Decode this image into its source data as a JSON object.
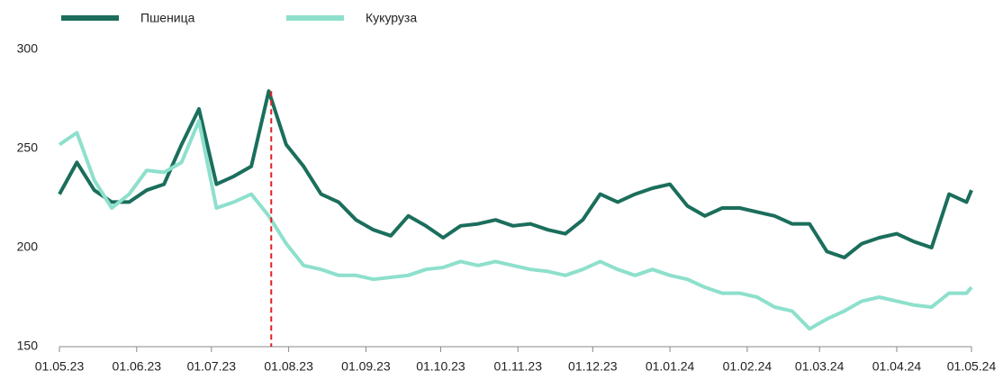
{
  "chart_data": {
    "type": "line",
    "x": [
      "01.05.23",
      "08.05.23",
      "15.05.23",
      "22.05.23",
      "29.05.23",
      "05.06.23",
      "12.06.23",
      "19.06.23",
      "26.06.23",
      "03.07.23",
      "10.07.23",
      "17.07.23",
      "24.07.23",
      "31.07.23",
      "07.08.23",
      "14.08.23",
      "21.08.23",
      "28.08.23",
      "04.09.23",
      "11.09.23",
      "18.09.23",
      "25.09.23",
      "02.10.23",
      "09.10.23",
      "16.10.23",
      "23.10.23",
      "30.10.23",
      "06.11.23",
      "13.11.23",
      "20.11.23",
      "27.11.23",
      "04.12.23",
      "11.12.23",
      "18.12.23",
      "25.12.23",
      "01.01.24",
      "08.01.24",
      "15.01.24",
      "22.01.24",
      "29.01.24",
      "05.02.24",
      "12.02.24",
      "19.02.24",
      "26.02.24",
      "04.03.24",
      "11.03.24",
      "18.03.24",
      "25.03.24",
      "01.04.24",
      "08.04.24",
      "15.04.24",
      "22.04.24",
      "29.04.24",
      "01.05.24"
    ],
    "series": [
      {
        "name": "Пшеница",
        "color": "#1b6e5c",
        "values": [
          227,
          243,
          229,
          223,
          223,
          229,
          232,
          252,
          270,
          232,
          236,
          241,
          279,
          252,
          241,
          227,
          223,
          214,
          209,
          206,
          216,
          211,
          205,
          211,
          212,
          214,
          211,
          212,
          209,
          207,
          214,
          227,
          223,
          227,
          230,
          232,
          221,
          216,
          220,
          220,
          218,
          216,
          212,
          212,
          198,
          195,
          202,
          205,
          207,
          203,
          200,
          227,
          223,
          229
        ]
      },
      {
        "name": "Кукуруза",
        "color": "#8de0cc",
        "values": [
          252,
          258,
          234,
          220,
          227,
          239,
          238,
          243,
          264,
          220,
          223,
          227,
          216,
          202,
          191,
          189,
          186,
          186,
          184,
          185,
          186,
          189,
          190,
          193,
          191,
          193,
          191,
          189,
          188,
          186,
          189,
          193,
          189,
          186,
          189,
          186,
          184,
          180,
          177,
          177,
          175,
          170,
          168,
          159,
          164,
          168,
          173,
          175,
          173,
          171,
          170,
          177,
          177,
          180
        ]
      }
    ],
    "xlim": [
      "01.05.23",
      "01.05.24"
    ],
    "xticks": [
      "01.05.23",
      "01.06.23",
      "01.07.23",
      "01.08.23",
      "01.09.23",
      "01.10.23",
      "01.11.23",
      "01.12.23",
      "01.01.24",
      "01.02.24",
      "01.03.24",
      "01.04.24",
      "01.05.24"
    ],
    "ylim": [
      150,
      300
    ],
    "yticks": [
      150,
      200,
      250,
      300
    ],
    "vline": {
      "x": "25.07.23",
      "color": "#e02020"
    },
    "legend": "top-left"
  }
}
